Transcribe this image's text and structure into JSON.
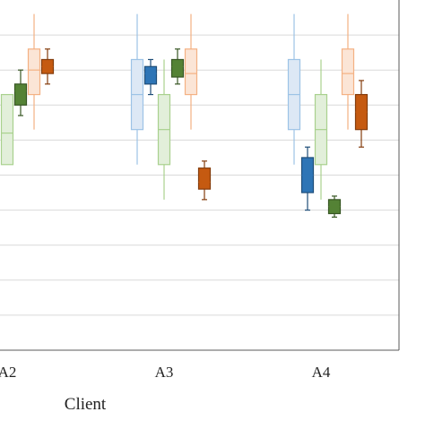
{
  "chart_data": {
    "type": "box",
    "xlabel": "Client",
    "ylabel": "",
    "title": "",
    "grid": true,
    "ylim": [
      0,
      10
    ],
    "gridlines": [
      1,
      2,
      3,
      4,
      5,
      6,
      7,
      8,
      9
    ],
    "categories": [
      {
        "label": "A2",
        "center": 1
      },
      {
        "label": "A3",
        "center": 2
      },
      {
        "label": "A4",
        "center": 3
      }
    ],
    "series": [
      {
        "color": "#2e75b6",
        "fill": "#dde8f5",
        "stroke": "#9dc3e6",
        "hollow": true,
        "offset": -0.3,
        "boxes": [
          {
            "category": "A3",
            "min": 5.3,
            "q1": 6.3,
            "median": 7.3,
            "q3": 8.3,
            "max": 9.6
          },
          {
            "category": "A4",
            "min": 5.3,
            "q1": 6.3,
            "median": 7.3,
            "q3": 8.3,
            "max": 9.6
          }
        ]
      },
      {
        "color": "#2e75b6",
        "fill": "#2e75b6",
        "stroke": "#1f4e79",
        "hollow": false,
        "offset": -0.15,
        "boxes": [
          {
            "category": "A3",
            "min": 7.3,
            "q1": 7.6,
            "median": 7.9,
            "q3": 8.1,
            "max": 8.3
          },
          {
            "category": "A4",
            "min": 4.0,
            "q1": 4.5,
            "median": 5.0,
            "q3": 5.5,
            "max": 5.8
          }
        ]
      },
      {
        "color": "#70ad47",
        "fill": "#e2efda",
        "stroke": "#a9d18e",
        "hollow": true,
        "offset": -0.0,
        "boxes": [
          {
            "category": "A2",
            "min": 5.3,
            "q1": 5.3,
            "median": 6.2,
            "q3": 7.3,
            "max": 7.3
          },
          {
            "category": "A3",
            "min": 4.3,
            "q1": 5.3,
            "median": 6.3,
            "q3": 7.3,
            "max": 8.3
          },
          {
            "category": "A4",
            "min": 4.3,
            "q1": 5.3,
            "median": 6.3,
            "q3": 7.3,
            "max": 8.3
          }
        ]
      },
      {
        "color": "#548235",
        "fill": "#548235",
        "stroke": "#375623",
        "hollow": false,
        "offset": 0.15,
        "boxes": [
          {
            "category": "A2",
            "min": 6.7,
            "q1": 7.0,
            "median": 7.4,
            "q3": 7.6,
            "max": 8.0
          },
          {
            "category": "A3",
            "min": 7.6,
            "q1": 7.8,
            "median": 8.1,
            "q3": 8.3,
            "max": 8.6
          },
          {
            "category": "A4",
            "min": 3.8,
            "q1": 3.9,
            "median": 4.1,
            "q3": 4.3,
            "max": 4.4
          }
        ]
      },
      {
        "color": "#f4b183",
        "fill": "#fbe5d6",
        "stroke": "#f4b183",
        "hollow": true,
        "offset": 0.3,
        "boxes": [
          {
            "category": "A2",
            "min": 6.3,
            "q1": 7.3,
            "median": 8.0,
            "q3": 8.6,
            "max": 9.6
          },
          {
            "category": "A3",
            "min": 6.3,
            "q1": 7.3,
            "median": 7.9,
            "q3": 8.6,
            "max": 9.6
          },
          {
            "category": "A4",
            "min": 6.3,
            "q1": 7.3,
            "median": 7.9,
            "q3": 8.6,
            "max": 9.6
          }
        ]
      },
      {
        "color": "#c55a11",
        "fill": "#c55a11",
        "stroke": "#843c0c",
        "hollow": false,
        "offset": 0.45,
        "boxes": [
          {
            "category": "A2",
            "min": 7.6,
            "q1": 7.9,
            "median": 8.1,
            "q3": 8.3,
            "max": 8.6
          },
          {
            "category": "A3",
            "min": 4.3,
            "q1": 4.6,
            "median": 4.8,
            "q3": 5.2,
            "max": 5.4
          },
          {
            "category": "A4",
            "min": 5.8,
            "q1": 6.3,
            "median": 6.8,
            "q3": 7.3,
            "max": 7.7
          }
        ]
      }
    ]
  }
}
